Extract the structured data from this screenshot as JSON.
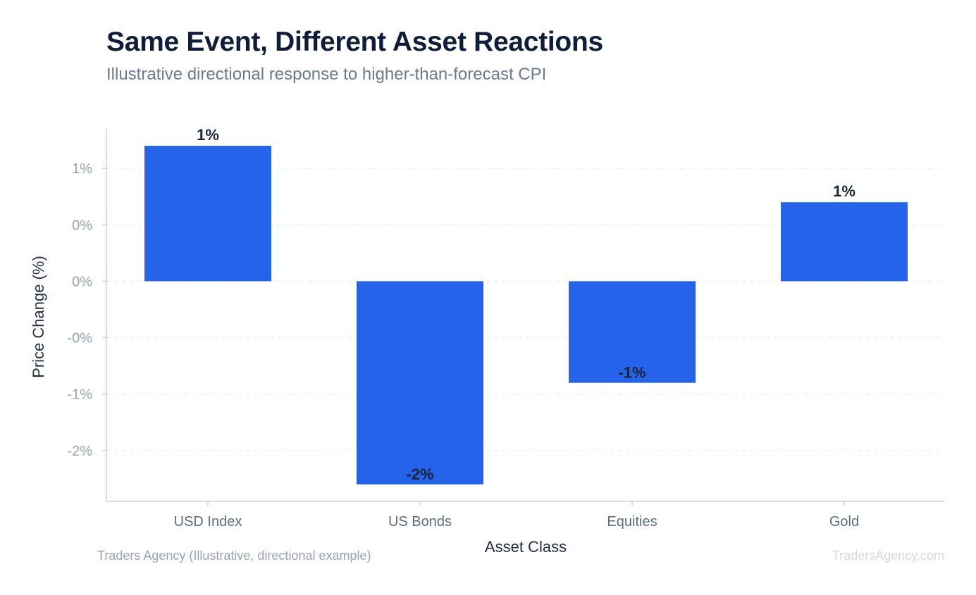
{
  "chart_data": {
    "type": "bar",
    "title": "Same Event, Different Asset Reactions",
    "subtitle": "Illustrative directional response to higher-than-forecast CPI",
    "xlabel": "Asset Class",
    "ylabel": "Price Change (%)",
    "categories": [
      "USD Index",
      "US Bonds",
      "Equities",
      "Gold"
    ],
    "values": [
      1.2,
      -1.8,
      -0.9,
      0.7
    ],
    "data_labels": [
      "1%",
      "-2%",
      "-1%",
      "1%"
    ],
    "ylim": [
      -1.95,
      1.35
    ],
    "yticks": [
      {
        "value": 1.0,
        "label": "1%"
      },
      {
        "value": 0.5,
        "label": "0%"
      },
      {
        "value": 0.0,
        "label": "0%"
      },
      {
        "value": -0.5,
        "label": "-0%"
      },
      {
        "value": -1.0,
        "label": "-1%"
      },
      {
        "value": -1.5,
        "label": "-2%"
      }
    ],
    "grid": "horizontal dashed",
    "bar_color": "#2563eb"
  },
  "footer": {
    "source": "Traders Agency (Illustrative, directional example)",
    "brand": "TradersAgency.com"
  }
}
